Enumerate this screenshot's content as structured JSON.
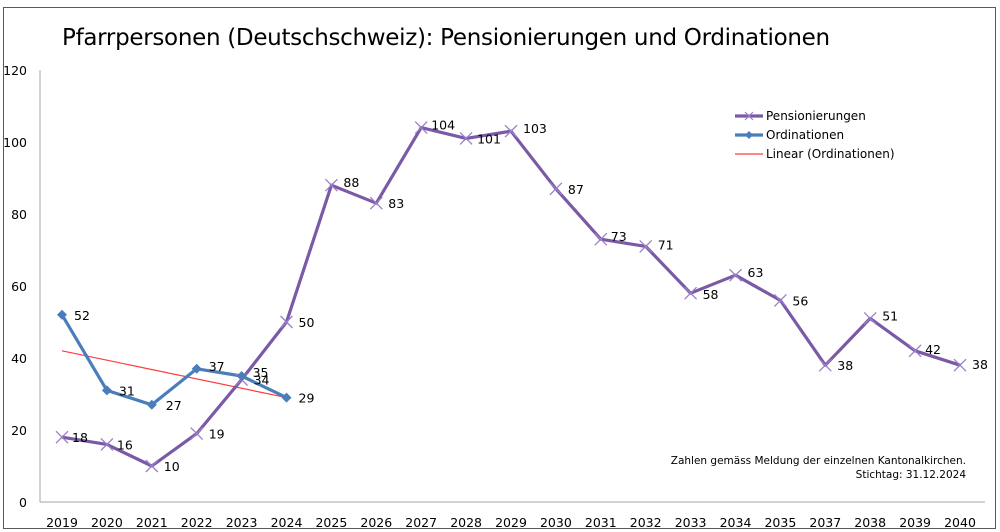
{
  "chart_data": {
    "type": "line",
    "title": "Pfarrpersonen (Deutschschweiz): Pensionierungen und Ordinationen",
    "xlabel": "",
    "ylabel": "",
    "ylim": [
      0,
      120
    ],
    "yticks": [
      0,
      20,
      40,
      60,
      80,
      100,
      120
    ],
    "grid": false,
    "legend_position": "top-right",
    "categories": [
      "2019",
      "2020",
      "2021",
      "2022",
      "2023",
      "2024",
      "2025",
      "2026",
      "2027",
      "2028",
      "2029",
      "2030",
      "2031",
      "2032",
      "2033",
      "2034",
      "2035",
      "2037",
      "2038",
      "2039",
      "2040"
    ],
    "series": [
      {
        "name": "Pensionierungen",
        "color": "#7a5aa6",
        "marker": "x",
        "values": [
          18,
          16,
          10,
          19,
          34,
          50,
          88,
          83,
          104,
          101,
          103,
          87,
          73,
          71,
          58,
          63,
          56,
          38,
          51,
          42,
          38
        ]
      },
      {
        "name": "Ordinationen",
        "color": "#4a7ebb",
        "marker": "diamond",
        "values": [
          52,
          31,
          27,
          37,
          35,
          29,
          null,
          null,
          null,
          null,
          null,
          null,
          null,
          null,
          null,
          null,
          null,
          null,
          null,
          null,
          null
        ]
      },
      {
        "name": "Linear (Ordinationen)",
        "color": "#ff3b3b",
        "type": "trendline",
        "start": {
          "category": "2019",
          "value": 42
        },
        "end": {
          "category": "2024",
          "value": 29
        }
      }
    ],
    "annotations": [
      "Zahlen gemäss Meldung der einzelnen Kantonalkirchen.",
      "Stichtag: 31.12.2024"
    ]
  }
}
